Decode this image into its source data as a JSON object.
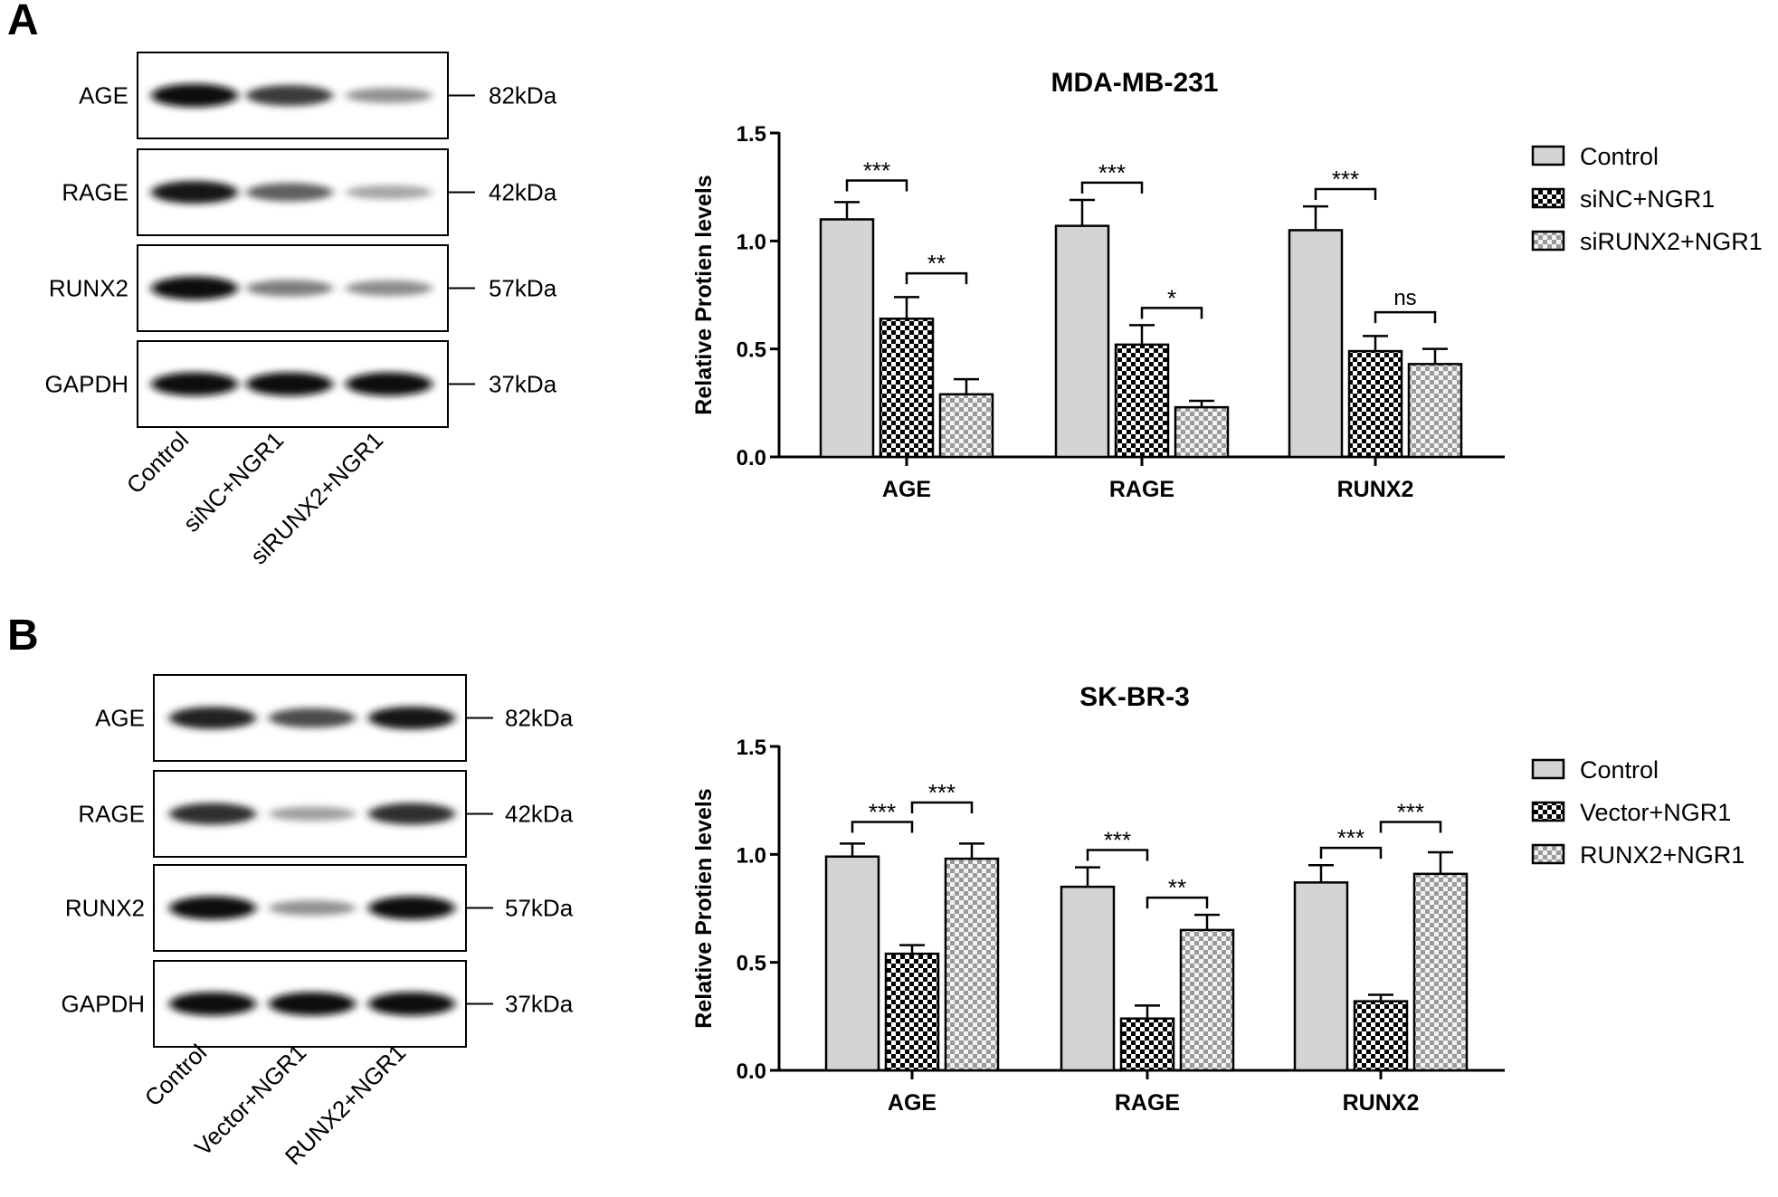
{
  "panels": [
    {
      "letter": "A",
      "blot": {
        "rows": [
          {
            "label": "AGE",
            "marker": "82kDa",
            "intensity": [
              1.0,
              0.78,
              0.35
            ]
          },
          {
            "label": "RAGE",
            "marker": "42kDa",
            "intensity": [
              0.95,
              0.6,
              0.25
            ]
          },
          {
            "label": "RUNX2",
            "marker": "57kDa",
            "intensity": [
              1.0,
              0.45,
              0.38
            ]
          },
          {
            "label": "GAPDH",
            "marker": "37kDa",
            "intensity": [
              1.0,
              1.0,
              1.0
            ]
          }
        ],
        "lanes": [
          "Control",
          "siNC+NGR1",
          "siRUNX2+NGR1"
        ]
      }
    },
    {
      "letter": "B",
      "blot": {
        "rows": [
          {
            "label": "AGE",
            "marker": "82kDa",
            "intensity": [
              0.9,
              0.7,
              0.95
            ]
          },
          {
            "label": "RAGE",
            "marker": "42kDa",
            "intensity": [
              0.85,
              0.28,
              0.85
            ]
          },
          {
            "label": "RUNX2",
            "marker": "57kDa",
            "intensity": [
              1.0,
              0.35,
              1.0
            ]
          },
          {
            "label": "GAPDH",
            "marker": "37kDa",
            "intensity": [
              1.0,
              1.0,
              1.0
            ]
          }
        ],
        "lanes": [
          "Control",
          "Vector+NGR1",
          "RUNX2+NGR1"
        ]
      }
    }
  ],
  "chart_data": [
    {
      "type": "bar",
      "title": "MDA-MB-231",
      "ylabel": "Relative Protien levels",
      "xlabel": "",
      "ylim": [
        0,
        1.5
      ],
      "yticks": [
        "0.0",
        "0.5",
        "1.0",
        "1.5"
      ],
      "categories": [
        "AGE",
        "RAGE",
        "RUNX2"
      ],
      "legend_position": "top-right",
      "series": [
        {
          "name": "Control",
          "pattern": "solid-gray",
          "values": [
            1.1,
            1.07,
            1.05
          ],
          "errors": [
            0.08,
            0.12,
            0.11
          ]
        },
        {
          "name": "siNC+NGR1",
          "pattern": "checker-dark",
          "values": [
            0.64,
            0.52,
            0.49
          ],
          "errors": [
            0.1,
            0.09,
            0.07
          ]
        },
        {
          "name": "siRUNX2+NGR1",
          "pattern": "checker-light",
          "values": [
            0.29,
            0.23,
            0.43
          ],
          "errors": [
            0.07,
            0.03,
            0.07
          ]
        }
      ],
      "significance": [
        {
          "category": 0,
          "from": 0,
          "to": 1,
          "label": "***",
          "y": 1.28
        },
        {
          "category": 0,
          "from": 1,
          "to": 2,
          "label": "**",
          "y": 0.85
        },
        {
          "category": 1,
          "from": 0,
          "to": 1,
          "label": "***",
          "y": 1.27
        },
        {
          "category": 1,
          "from": 1,
          "to": 2,
          "label": "*",
          "y": 0.69
        },
        {
          "category": 2,
          "from": 0,
          "to": 1,
          "label": "***",
          "y": 1.24
        },
        {
          "category": 2,
          "from": 1,
          "to": 2,
          "label": "ns",
          "y": 0.67
        }
      ]
    },
    {
      "type": "bar",
      "title": "SK-BR-3",
      "ylabel": "Relative Protien levels",
      "xlabel": "",
      "ylim": [
        0,
        1.5
      ],
      "yticks": [
        "0.0",
        "0.5",
        "1.0",
        "1.5"
      ],
      "categories": [
        "AGE",
        "RAGE",
        "RUNX2"
      ],
      "legend_position": "top-right",
      "series": [
        {
          "name": "Control",
          "pattern": "solid-gray",
          "values": [
            0.99,
            0.85,
            0.87
          ],
          "errors": [
            0.06,
            0.09,
            0.08
          ]
        },
        {
          "name": "Vector+NGR1",
          "pattern": "checker-dark",
          "values": [
            0.54,
            0.24,
            0.32
          ],
          "errors": [
            0.04,
            0.06,
            0.03
          ]
        },
        {
          "name": "RUNX2+NGR1",
          "pattern": "checker-light",
          "values": [
            0.98,
            0.65,
            0.91
          ],
          "errors": [
            0.07,
            0.07,
            0.1
          ]
        }
      ],
      "significance": [
        {
          "category": 0,
          "from": 0,
          "to": 1,
          "label": "***",
          "y": 1.15
        },
        {
          "category": 0,
          "from": 1,
          "to": 2,
          "label": "***",
          "y": 1.24
        },
        {
          "category": 1,
          "from": 0,
          "to": 1,
          "label": "***",
          "y": 1.02
        },
        {
          "category": 1,
          "from": 1,
          "to": 2,
          "label": "**",
          "y": 0.8
        },
        {
          "category": 2,
          "from": 0,
          "to": 1,
          "label": "***",
          "y": 1.03
        },
        {
          "category": 2,
          "from": 1,
          "to": 2,
          "label": "***",
          "y": 1.15
        }
      ]
    }
  ]
}
